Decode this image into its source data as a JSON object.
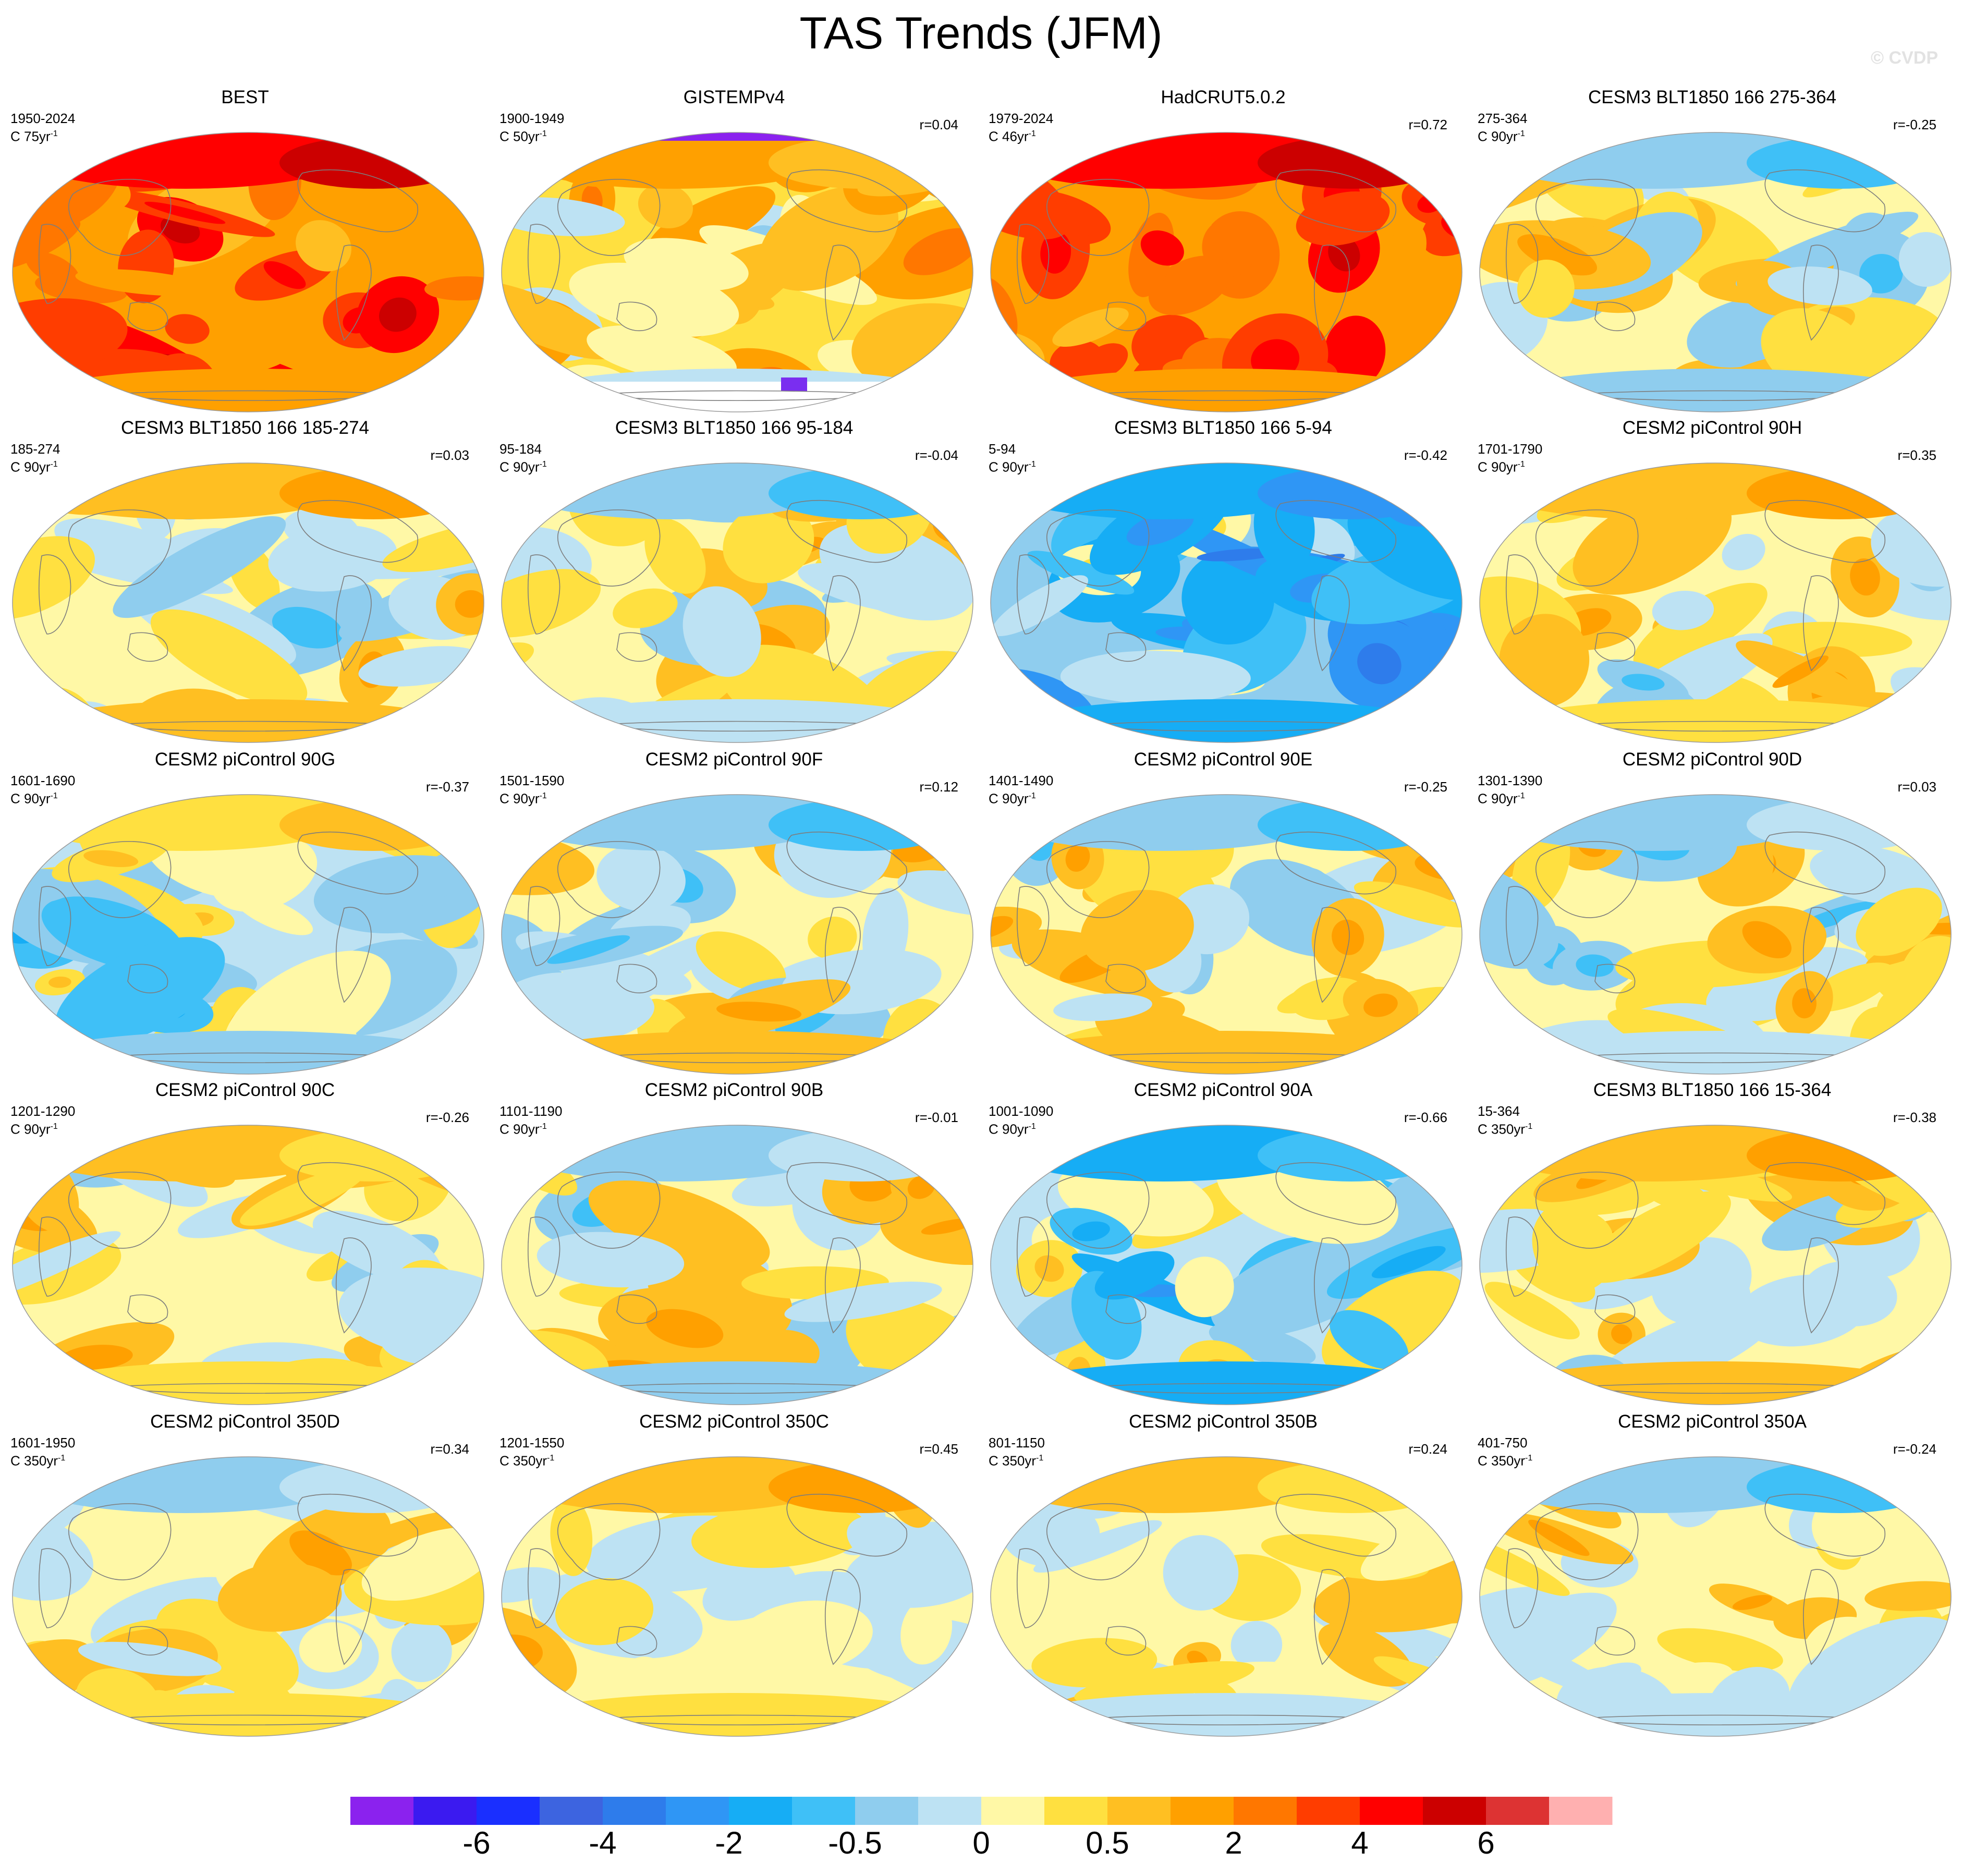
{
  "title": "TAS Trends (JFM)",
  "watermark": "© CVDP",
  "colorbar": {
    "colors": [
      "#8b22ee",
      "#3b1af0",
      "#1a2fff",
      "#3d64e0",
      "#2e7ceb",
      "#2f96f5",
      "#16adf5",
      "#3fc0f7",
      "#8fcdee",
      "#bde2f3",
      "#fff8a6",
      "#ffe040",
      "#ffbf22",
      "#ffa000",
      "#ff7700",
      "#ff3d00",
      "#ff0000",
      "#cc0000",
      "#dd3333",
      "#ffb0b0"
    ],
    "labels": [
      {
        "text": "-6",
        "edge": 2
      },
      {
        "text": "-4",
        "edge": 4
      },
      {
        "text": "-2",
        "edge": 6
      },
      {
        "text": "-0.5",
        "edge": 8
      },
      {
        "text": "0",
        "edge": 10
      },
      {
        "text": "0.5",
        "edge": 12
      },
      {
        "text": "2",
        "edge": 14
      },
      {
        "text": "4",
        "edge": 16
      },
      {
        "text": "6",
        "edge": 18
      }
    ]
  },
  "panels": [
    {
      "title": "BEST",
      "range": "1950-2024",
      "scale": "C 75yr",
      "corr": "",
      "base": 13,
      "theme": "warm"
    },
    {
      "title": "GISTEMPv4",
      "range": "1900-1949",
      "scale": "C 50yr",
      "corr": "r=0.04",
      "base": 11,
      "theme": "gistemp"
    },
    {
      "title": "HadCRUT5.0.2",
      "range": "1979-2024",
      "scale": "C 46yr",
      "corr": "r=0.72",
      "base": 13,
      "theme": "warm"
    },
    {
      "title": "CESM3 BLT1850 166 275-364",
      "range": "275-364",
      "scale": "C 90yr",
      "corr": "r=-0.25",
      "base": 10,
      "theme": "mixed"
    },
    {
      "title": "CESM3 BLT1850 166 185-274",
      "range": "185-274",
      "scale": "C 90yr",
      "corr": "r=0.03",
      "base": 10,
      "theme": "mixed"
    },
    {
      "title": "CESM3 BLT1850 166 95-184",
      "range": "95-184",
      "scale": "C 90yr",
      "corr": "r=-0.04",
      "base": 10,
      "theme": "mixed"
    },
    {
      "title": "CESM3 BLT1850 166 5-94",
      "range": "5-94",
      "scale": "C 90yr",
      "corr": "r=-0.42",
      "base": 8,
      "theme": "cold"
    },
    {
      "title": "CESM2 piControl 90H",
      "range": "1701-1790",
      "scale": "C 90yr",
      "corr": "r=0.35",
      "base": 10,
      "theme": "mixed"
    },
    {
      "title": "CESM2 piControl 90G",
      "range": "1601-1690",
      "scale": "C 90yr",
      "corr": "r=-0.37",
      "base": 9,
      "theme": "mixed"
    },
    {
      "title": "CESM2 piControl 90F",
      "range": "1501-1590",
      "scale": "C 90yr",
      "corr": "r=0.12",
      "base": 10,
      "theme": "mixed"
    },
    {
      "title": "CESM2 piControl 90E",
      "range": "1401-1490",
      "scale": "C 90yr",
      "corr": "r=-0.25",
      "base": 10,
      "theme": "mixed"
    },
    {
      "title": "CESM2 piControl 90D",
      "range": "1301-1390",
      "scale": "C 90yr",
      "corr": "r=0.03",
      "base": 10,
      "theme": "mixed"
    },
    {
      "title": "CESM2 piControl 90C",
      "range": "1201-1290",
      "scale": "C 90yr",
      "corr": "r=-0.26",
      "base": 10,
      "theme": "mixed"
    },
    {
      "title": "CESM2 piControl 90B",
      "range": "1101-1190",
      "scale": "C 90yr",
      "corr": "r=-0.01",
      "base": 10,
      "theme": "mixed"
    },
    {
      "title": "CESM2 piControl 90A",
      "range": "1001-1090",
      "scale": "C 90yr",
      "corr": "r=-0.66",
      "base": 9,
      "theme": "cold"
    },
    {
      "title": "CESM3 BLT1850 166 15-364",
      "range": "15-364",
      "scale": "C 350yr",
      "corr": "r=-0.38",
      "base": 10,
      "theme": "mixed"
    },
    {
      "title": "CESM2 piControl 350D",
      "range": "1601-1950",
      "scale": "C 350yr",
      "corr": "r=0.34",
      "base": 10,
      "theme": "mild"
    },
    {
      "title": "CESM2 piControl 350C",
      "range": "1201-1550",
      "scale": "C 350yr",
      "corr": "r=0.45",
      "base": 10,
      "theme": "mild"
    },
    {
      "title": "CESM2 piControl 350B",
      "range": "801-1150",
      "scale": "C 350yr",
      "corr": "r=0.24",
      "base": 10,
      "theme": "mild"
    },
    {
      "title": "CESM2 piControl 350A",
      "range": "401-750",
      "scale": "C 350yr",
      "corr": "r=-0.24",
      "base": 10,
      "theme": "mild"
    }
  ]
}
